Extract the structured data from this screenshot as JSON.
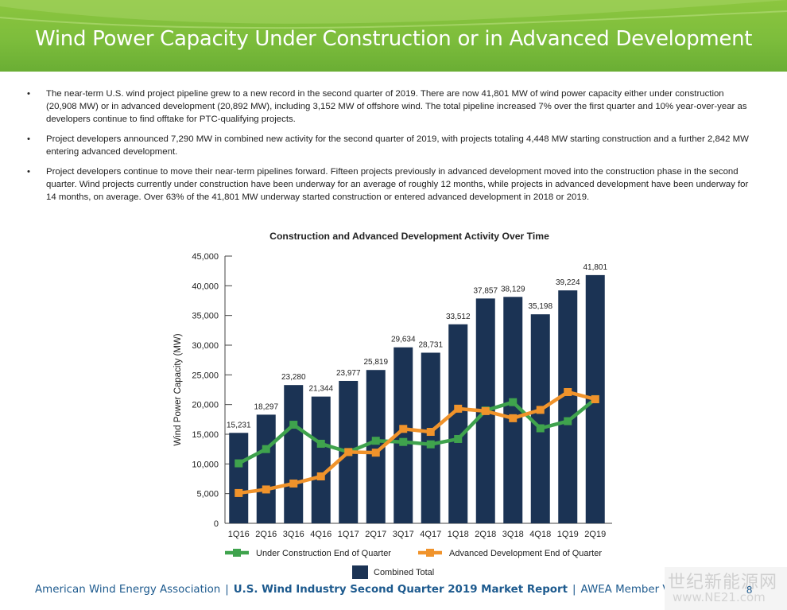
{
  "header": {
    "title": "Wind Power Capacity Under Construction or in Advanced Development"
  },
  "bullets": [
    "The near-term U.S. wind project pipeline grew to a new record in the second quarter of 2019.  There are now 41,801 MW of wind power capacity either under construction (20,908 MW) or in advanced development (20,892 MW), including 3,152 MW of offshore wind. The total pipeline increased 7% over the first quarter and 10% year-over-year as developers continue to find offtake for PTC-qualifying projects.",
    "Project developers announced 7,290 MW in combined new activity for the second quarter of 2019, with projects totaling 4,448 MW starting construction and a further 2,842 MW entering advanced development.",
    "Project developers continue to move their near-term pipelines forward. Fifteen projects previously in advanced development moved into the construction phase in the second quarter. Wind projects currently under construction have been underway for an average of roughly 12 months, while projects in advanced development have been underway for 14 months, on average. Over 63% of the 41,801 MW underway started construction or entered advanced development in 2018 or 2019."
  ],
  "bullet_marker": "•",
  "chart_data": {
    "type": "bar",
    "title": "Construction and Advanced Development Activity Over Time",
    "ylabel": "Wind Power Capacity (MW)",
    "xlabel": "",
    "ylim": [
      0,
      45000
    ],
    "yticks": [
      0,
      5000,
      10000,
      15000,
      20000,
      25000,
      30000,
      35000,
      40000,
      45000
    ],
    "ytick_labels": [
      "0",
      "5,000",
      "10,000",
      "15,000",
      "20,000",
      "25,000",
      "30,000",
      "35,000",
      "40,000",
      "45,000"
    ],
    "categories": [
      "1Q16",
      "2Q16",
      "3Q16",
      "4Q16",
      "1Q17",
      "2Q17",
      "3Q17",
      "4Q17",
      "1Q18",
      "2Q18",
      "3Q18",
      "4Q18",
      "1Q19",
      "2Q19"
    ],
    "series": [
      {
        "name": "Combined Total",
        "kind": "bar",
        "color": "#1b3354",
        "values": [
          15231,
          18297,
          23280,
          21344,
          23977,
          25819,
          29634,
          28731,
          33512,
          37857,
          38129,
          35198,
          39224,
          41801
        ],
        "data_labels": [
          "15,231",
          "18,297",
          "23,280",
          "21,344",
          "23,977",
          "25,819",
          "29,634",
          "28,731",
          "33,512",
          "37,857",
          "38,129",
          "35,198",
          "39,224",
          "41,801"
        ]
      },
      {
        "name": "Under Construction End of Quarter",
        "kind": "line",
        "color": "#3fa34d",
        "values": [
          10100,
          12500,
          16600,
          13400,
          12000,
          13900,
          13700,
          13300,
          14200,
          19000,
          20400,
          16000,
          17200,
          20908
        ]
      },
      {
        "name": "Advanced Development End of Quarter",
        "kind": "line",
        "color": "#f0932b",
        "values": [
          5100,
          5700,
          6700,
          7900,
          12000,
          11900,
          15900,
          15400,
          19300,
          18900,
          17700,
          19100,
          22100,
          20892
        ]
      }
    ],
    "grid": false,
    "legend_position": "bottom"
  },
  "footer": {
    "org": "American Wind Energy Association",
    "report": "U.S. Wind Industry Second Quarter 2019 Market Report",
    "version": "AWEA Member Version",
    "separator": "|",
    "page": "8"
  },
  "watermark": {
    "text": "世纪新能源网",
    "url": "www.NE21.com"
  }
}
